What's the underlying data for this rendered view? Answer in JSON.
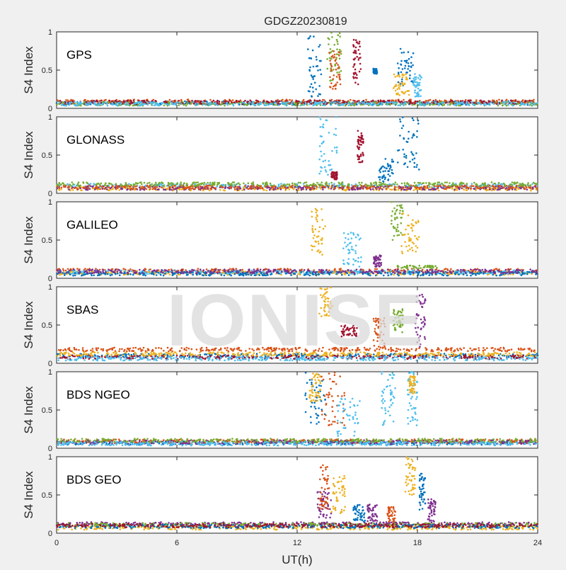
{
  "chart_data": {
    "type": "scatter",
    "title": "GDGZ20230819",
    "xlabel": "UT(h)",
    "ylabel": "S4 Index",
    "xlim": [
      0,
      24
    ],
    "ylim": [
      0,
      1
    ],
    "xticks": [
      0,
      6,
      12,
      18,
      24
    ],
    "yticks": [
      0,
      0.5,
      1
    ],
    "xtick_labels": [
      "0",
      "6",
      "12",
      "18",
      "24"
    ],
    "ytick_labels": [
      "0",
      "0.5",
      "1"
    ],
    "watermark": "IONISE",
    "grid": false,
    "series_colors": [
      "#0072BD",
      "#D95319",
      "#EDB120",
      "#7E2F8E",
      "#77AC30",
      "#4DBEEE",
      "#A2142F"
    ],
    "panels": [
      {
        "label": "GPS",
        "baseline": [
          {
            "color": 0,
            "level": 0.07
          },
          {
            "color": 1,
            "level": 0.09
          },
          {
            "color": 4,
            "level": 0.06
          },
          {
            "color": 6,
            "level": 0.08
          },
          {
            "color": 5,
            "level": 0.06
          }
        ],
        "bursts": [
          {
            "color": 0,
            "x": [
              12.5,
              13.2
            ],
            "y": [
              0.15,
              0.95
            ]
          },
          {
            "color": 4,
            "x": [
              13.5,
              14.2
            ],
            "y": [
              0.35,
              1.0
            ]
          },
          {
            "color": 1,
            "x": [
              13.6,
              14.2
            ],
            "y": [
              0.25,
              0.75
            ]
          },
          {
            "color": 6,
            "x": [
              14.8,
              15.2
            ],
            "y": [
              0.3,
              0.9
            ]
          },
          {
            "color": 0,
            "x": [
              15.8,
              16.0
            ],
            "y": [
              0.45,
              0.52
            ]
          },
          {
            "color": 0,
            "x": [
              17.0,
              17.8
            ],
            "y": [
              0.3,
              0.78
            ]
          },
          {
            "color": 2,
            "x": [
              16.8,
              17.6
            ],
            "y": [
              0.15,
              0.45
            ]
          },
          {
            "color": 5,
            "x": [
              17.8,
              18.2
            ],
            "y": [
              0.15,
              0.45
            ]
          }
        ]
      },
      {
        "label": "GLONASS",
        "baseline": [
          {
            "color": 5,
            "level": 0.1
          },
          {
            "color": 2,
            "level": 0.06
          },
          {
            "color": 3,
            "level": 0.07
          },
          {
            "color": 1,
            "level": 0.08
          },
          {
            "color": 4,
            "level": 0.12
          }
        ],
        "bursts": [
          {
            "color": 5,
            "x": [
              13.0,
              14.0
            ],
            "y": [
              0.2,
              1.0
            ]
          },
          {
            "color": 6,
            "x": [
              13.7,
              14.0
            ],
            "y": [
              0.18,
              0.28
            ]
          },
          {
            "color": 6,
            "x": [
              15.0,
              15.3
            ],
            "y": [
              0.4,
              0.82
            ]
          },
          {
            "color": 0,
            "x": [
              16.0,
              16.8
            ],
            "y": [
              0.15,
              0.45
            ]
          },
          {
            "color": 0,
            "x": [
              17.0,
              18.1
            ],
            "y": [
              0.3,
              1.0
            ]
          }
        ]
      },
      {
        "label": "GALILEO",
        "baseline": [
          {
            "color": 1,
            "level": 0.1
          },
          {
            "color": 2,
            "level": 0.07
          },
          {
            "color": 5,
            "level": 0.08
          },
          {
            "color": 0,
            "level": 0.06
          },
          {
            "color": 3,
            "level": 0.09
          }
        ],
        "bursts": [
          {
            "color": 2,
            "x": [
              12.7,
              13.4
            ],
            "y": [
              0.3,
              0.92
            ]
          },
          {
            "color": 5,
            "x": [
              14.3,
              15.2
            ],
            "y": [
              0.15,
              0.6
            ]
          },
          {
            "color": 3,
            "x": [
              15.8,
              16.2
            ],
            "y": [
              0.15,
              0.3
            ]
          },
          {
            "color": 4,
            "x": [
              16.7,
              17.3
            ],
            "y": [
              0.5,
              1.0
            ]
          },
          {
            "color": 2,
            "x": [
              17.2,
              18.1
            ],
            "y": [
              0.3,
              0.85
            ]
          },
          {
            "color": 4,
            "x": [
              17.0,
              19.0
            ],
            "y": [
              0.13,
              0.17
            ]
          }
        ]
      },
      {
        "label": "SBAS",
        "baseline": [
          {
            "color": 1,
            "level": 0.18
          },
          {
            "color": 0,
            "level": 0.1
          },
          {
            "color": 6,
            "level": 0.08
          },
          {
            "color": 5,
            "level": 0.06
          },
          {
            "color": 2,
            "level": 0.12
          }
        ],
        "bursts": [
          {
            "color": 2,
            "x": [
              13.1,
              13.8
            ],
            "y": [
              0.6,
              1.0
            ]
          },
          {
            "color": 6,
            "x": [
              14.2,
              15.0
            ],
            "y": [
              0.35,
              0.5
            ]
          },
          {
            "color": 1,
            "x": [
              15.8,
              16.4
            ],
            "y": [
              0.2,
              0.6
            ]
          },
          {
            "color": 4,
            "x": [
              16.8,
              17.3
            ],
            "y": [
              0.4,
              0.72
            ]
          },
          {
            "color": 3,
            "x": [
              17.9,
              18.4
            ],
            "y": [
              0.2,
              0.9
            ]
          }
        ]
      },
      {
        "label": "BDS NGEO",
        "baseline": [
          {
            "color": 0,
            "level": 0.07
          },
          {
            "color": 1,
            "level": 0.09
          },
          {
            "color": 3,
            "level": 0.08
          },
          {
            "color": 4,
            "level": 0.1
          },
          {
            "color": 5,
            "level": 0.06
          }
        ],
        "bursts": [
          {
            "color": 0,
            "x": [
              12.4,
              13.4
            ],
            "y": [
              0.3,
              1.0
            ]
          },
          {
            "color": 2,
            "x": [
              12.6,
              13.2
            ],
            "y": [
              0.6,
              1.0
            ]
          },
          {
            "color": 1,
            "x": [
              13.2,
              14.4
            ],
            "y": [
              0.3,
              1.0
            ]
          },
          {
            "color": 5,
            "x": [
              14.0,
              15.2
            ],
            "y": [
              0.15,
              0.65
            ]
          },
          {
            "color": 5,
            "x": [
              16.2,
              16.9
            ],
            "y": [
              0.3,
              1.0
            ]
          },
          {
            "color": 5,
            "x": [
              17.5,
              18.0
            ],
            "y": [
              0.3,
              1.0
            ]
          },
          {
            "color": 2,
            "x": [
              17.6,
              17.9
            ],
            "y": [
              0.7,
              0.95
            ]
          }
        ]
      },
      {
        "label": "BDS GEO",
        "baseline": [
          {
            "color": 3,
            "level": 0.12
          },
          {
            "color": 2,
            "level": 0.07
          },
          {
            "color": 4,
            "level": 0.11
          },
          {
            "color": 0,
            "level": 0.09
          },
          {
            "color": 6,
            "level": 0.1
          }
        ],
        "bursts": [
          {
            "color": 3,
            "x": [
              13.0,
              13.7
            ],
            "y": [
              0.2,
              0.55
            ]
          },
          {
            "color": 1,
            "x": [
              13.1,
              13.6
            ],
            "y": [
              0.3,
              0.9
            ]
          },
          {
            "color": 2,
            "x": [
              13.7,
              14.4
            ],
            "y": [
              0.25,
              0.75
            ]
          },
          {
            "color": 0,
            "x": [
              14.8,
              15.4
            ],
            "y": [
              0.15,
              0.4
            ]
          },
          {
            "color": 3,
            "x": [
              15.5,
              16.0
            ],
            "y": [
              0.15,
              0.38
            ]
          },
          {
            "color": 1,
            "x": [
              16.5,
              16.9
            ],
            "y": [
              0.15,
              0.35
            ]
          },
          {
            "color": 2,
            "x": [
              17.4,
              17.9
            ],
            "y": [
              0.5,
              1.0
            ]
          },
          {
            "color": 0,
            "x": [
              18.1,
              18.4
            ],
            "y": [
              0.3,
              0.78
            ]
          },
          {
            "color": 3,
            "x": [
              18.5,
              18.9
            ],
            "y": [
              0.15,
              0.45
            ]
          }
        ]
      }
    ]
  }
}
